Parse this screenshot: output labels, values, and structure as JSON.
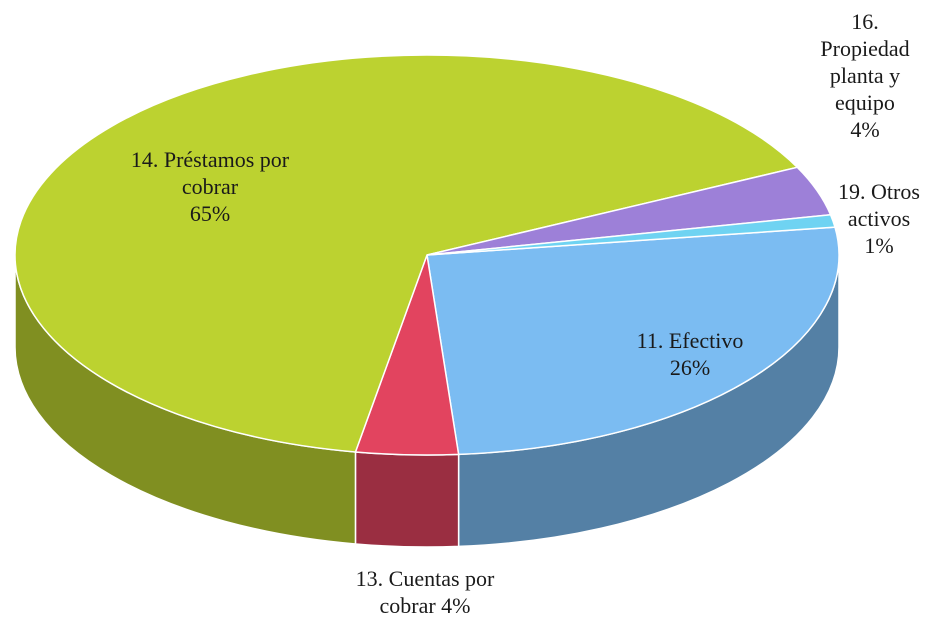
{
  "chart_data": {
    "type": "pie3d",
    "categories": [
      "11. Efectivo",
      "13. Cuentas por cobrar",
      "14. Préstamos por cobrar",
      "16. Propiedad planta y equipo",
      "19. Otros activos"
    ],
    "values": [
      26,
      4,
      65,
      4,
      1
    ],
    "value_labels": [
      "26%",
      "4%",
      "65%",
      "4%",
      "1%"
    ],
    "colors": [
      "#7bbcf2",
      "#e2445f",
      "#bcd230",
      "#9d80d8",
      "#6fd3f2"
    ]
  }
}
